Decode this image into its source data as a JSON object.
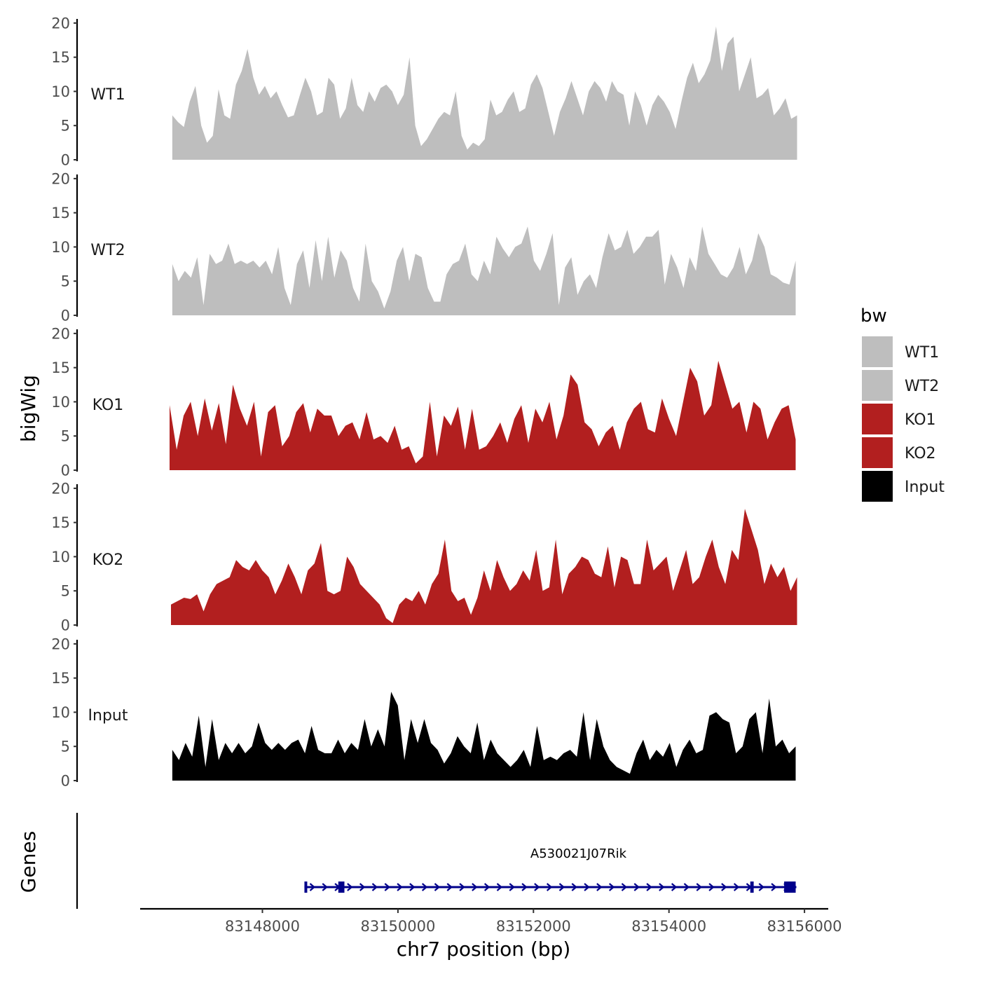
{
  "chart_data": {
    "type": "area",
    "x_axis": {
      "title": "chr7 position (bp)",
      "ticks": [
        83148000,
        83150000,
        83152000,
        83154000,
        83156000
      ],
      "tick_labels": [
        "83148000",
        "83150000",
        "83152000",
        "83154000",
        "83156000"
      ],
      "range": [
        83146150,
        83156300
      ]
    },
    "y_axis": {
      "title": "bigWig",
      "range": [
        0,
        20.5
      ],
      "ticks": [
        0,
        5,
        10,
        15,
        20
      ],
      "tick_labels": [
        "0",
        "5",
        "10",
        "15",
        "20"
      ]
    },
    "gene_axis_title": "Genes",
    "legend": {
      "title": "bw",
      "items": [
        {
          "label": "WT1",
          "color": "#bebebe"
        },
        {
          "label": "WT2",
          "color": "#bebebe"
        },
        {
          "label": "KO1",
          "color": "#b21f1f"
        },
        {
          "label": "KO2",
          "color": "#b21f1f"
        },
        {
          "label": "Input",
          "color": "#000000"
        }
      ]
    },
    "tracks": [
      {
        "name": "WT1",
        "color": "#bebebe",
        "x_start": 83146670,
        "x_end": 83155890,
        "values": [
          6.5,
          5.5,
          4.8,
          8.5,
          10.8,
          5,
          2.5,
          3.5,
          10.3,
          6.5,
          6,
          11,
          13,
          16.2,
          12,
          9.5,
          10.8,
          9,
          10,
          8,
          6.2,
          6.5,
          9.3,
          12,
          10,
          6.5,
          7,
          12,
          11,
          6,
          7.5,
          12,
          8,
          7,
          10,
          8.5,
          10.5,
          11,
          10,
          8,
          9.5,
          15,
          5,
          2,
          3,
          4.5,
          6,
          7,
          6.5,
          10,
          3.5,
          1.5,
          2.5,
          2,
          3,
          8.8,
          6.5,
          7,
          8.8,
          10,
          7,
          7.5,
          11,
          12.5,
          10.5,
          7,
          3.5,
          7,
          9,
          11.5,
          9,
          6.5,
          10,
          11.5,
          10.5,
          8.5,
          11.5,
          10,
          9.5,
          5,
          10,
          8,
          5,
          8,
          9.5,
          8.5,
          7,
          4.5,
          8.5,
          12,
          14.2,
          11.2,
          12.5,
          14.5,
          19.5,
          13,
          17,
          18,
          10,
          12.5,
          15,
          9,
          9.5,
          10.5,
          6.5,
          7.5,
          9,
          6,
          6.5
        ]
      },
      {
        "name": "WT2",
        "color": "#bebebe",
        "x_start": 83146670,
        "x_end": 83155870,
        "values": [
          7.5,
          5,
          6.5,
          5.5,
          8.5,
          1.5,
          9,
          7.5,
          8,
          10.5,
          7.5,
          8,
          7.5,
          8,
          7,
          8,
          6,
          10,
          4,
          1.5,
          7.5,
          9.5,
          4,
          11,
          5,
          11.5,
          5.5,
          9.5,
          8,
          4,
          2,
          10.5,
          5,
          3.5,
          1,
          3.5,
          8,
          10,
          5,
          9,
          8.5,
          4,
          2,
          2,
          6,
          7.5,
          8,
          10.5,
          6,
          5,
          8,
          6,
          11.5,
          9.8,
          8.5,
          10,
          10.5,
          13,
          8,
          6.5,
          9,
          12,
          1.5,
          7,
          8.5,
          3,
          5,
          6,
          4,
          8.5,
          12,
          9.5,
          10,
          12.5,
          9,
          10,
          11.5,
          11.5,
          12.5,
          4.5,
          9,
          7,
          4,
          8.5,
          6.5,
          13,
          9,
          7.5,
          6,
          5.5,
          7,
          10,
          6,
          8,
          12,
          10,
          6,
          5.5,
          4.8,
          4.5,
          8
        ]
      },
      {
        "name": "KO1",
        "color": "#b21f1f",
        "x_start": 83146630,
        "x_end": 83155870,
        "values": [
          9.5,
          3,
          8,
          10,
          5,
          10.5,
          5.8,
          9.8,
          3.8,
          12.5,
          9,
          6.5,
          10,
          2,
          8.5,
          9.5,
          3.5,
          5,
          8.5,
          9.8,
          5.5,
          9,
          8,
          8,
          5,
          6.5,
          7,
          4.5,
          8.5,
          4.5,
          5,
          4,
          6.5,
          3,
          3.5,
          1,
          2,
          10,
          2,
          8,
          6.5,
          9.3,
          3,
          9,
          3,
          3.5,
          5,
          7,
          4,
          7.5,
          9.5,
          4,
          9,
          7,
          10,
          4.5,
          8,
          14,
          12.5,
          7,
          6,
          3.5,
          5.5,
          6.5,
          3,
          7,
          9,
          10,
          6,
          5.5,
          10.5,
          7.5,
          5,
          10,
          15,
          13,
          8,
          9.5,
          16,
          12.5,
          9,
          10,
          5.5,
          10,
          9,
          4.5,
          7,
          9,
          9.5,
          4.5
        ]
      },
      {
        "name": "KO2",
        "color": "#b21f1f",
        "x_start": 83146650,
        "x_end": 83155890,
        "values": [
          3,
          3.5,
          4,
          3.8,
          4.5,
          2,
          4.5,
          6,
          6.5,
          7,
          9.5,
          8.5,
          8,
          9.5,
          8,
          7,
          4.5,
          6.5,
          9,
          7,
          4.5,
          8,
          9,
          12,
          5,
          4.5,
          5,
          10,
          8.5,
          6,
          5,
          4,
          3,
          1,
          0.3,
          3,
          4,
          3.5,
          5,
          3,
          6,
          7.5,
          12.5,
          5,
          3.5,
          4,
          1.5,
          4,
          8,
          5,
          9.5,
          7,
          5,
          6,
          8,
          6.5,
          11,
          5,
          5.5,
          12.5,
          4.5,
          7.5,
          8.5,
          10,
          9.5,
          7.5,
          7,
          11.5,
          5.5,
          10,
          9.5,
          6,
          6,
          12.5,
          8,
          9,
          10,
          5,
          8,
          11,
          6,
          7,
          10,
          12.5,
          8.5,
          6,
          11,
          9.5,
          17,
          14,
          11,
          6,
          9,
          7,
          8.5,
          5,
          7
        ]
      },
      {
        "name": "Input",
        "color": "#000000",
        "x_start": 83146670,
        "x_end": 83155870,
        "values": [
          4.5,
          3,
          5.5,
          3.5,
          9.5,
          2,
          9,
          3,
          5.5,
          4,
          5.5,
          4,
          5,
          8.5,
          5.5,
          4.5,
          5.5,
          4.5,
          5.5,
          6,
          4,
          8,
          4.5,
          4,
          4,
          6,
          4,
          5.5,
          4.5,
          9,
          5,
          7.5,
          5,
          13,
          11,
          3,
          9,
          5.5,
          9,
          5.5,
          4.5,
          2.5,
          4,
          6.5,
          5,
          4,
          8.5,
          3,
          6,
          4,
          3,
          2,
          3,
          4.5,
          2,
          8,
          3,
          3.5,
          3,
          4,
          4.5,
          3.5,
          10,
          3,
          9,
          5,
          3,
          2,
          1.5,
          1,
          4,
          6,
          3,
          4.5,
          3.5,
          5.5,
          2,
          4.5,
          6,
          4,
          4.5,
          9.5,
          10,
          9,
          8.5,
          4,
          5,
          9,
          10,
          4,
          12,
          5,
          6,
          4,
          5
        ]
      }
    ],
    "genes": [
      {
        "name": "A530021J07Rik",
        "strand": "+",
        "color": "#00008b",
        "start": 83148620,
        "end": 83155880,
        "exons": [
          [
            83148620,
            83148660
          ],
          [
            83149120,
            83149210
          ],
          [
            83155200,
            83155250
          ],
          [
            83155700,
            83155870
          ]
        ]
      }
    ]
  }
}
